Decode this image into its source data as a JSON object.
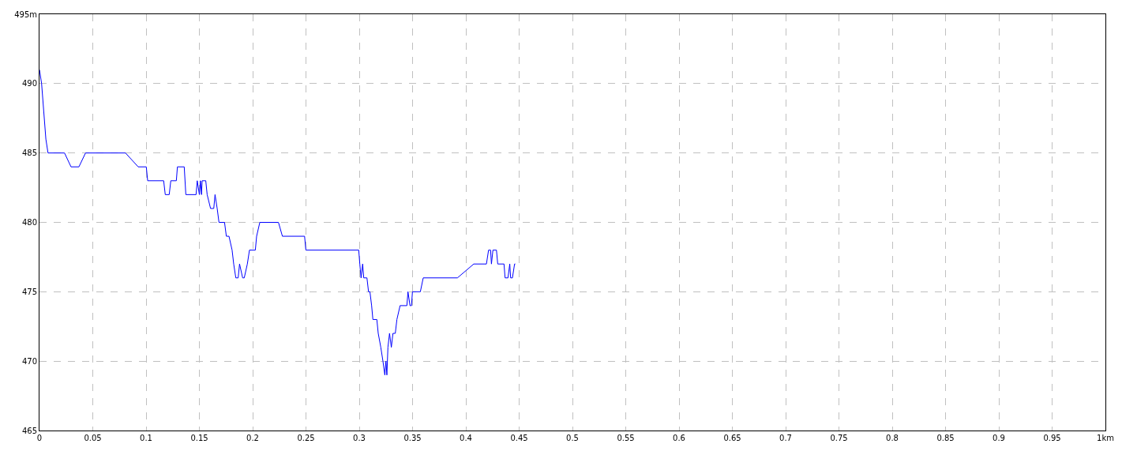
{
  "chart_data": {
    "type": "line",
    "color": "#0000ff",
    "x": [
      0,
      0.002,
      0.004,
      0.006,
      0.008,
      0.0235,
      0.0296,
      0.037,
      0.0432,
      0.0807,
      0.0926,
      0.1002,
      0.1015,
      0.1165,
      0.118,
      0.1217,
      0.1232,
      0.1284,
      0.1294,
      0.1358,
      0.1373,
      0.1469,
      0.148,
      0.15,
      0.151,
      0.152,
      0.1526,
      0.156,
      0.1573,
      0.1605,
      0.1635,
      0.1647,
      0.1667,
      0.1684,
      0.1736,
      0.1753,
      0.1778,
      0.1807,
      0.1822,
      0.1842,
      0.1864,
      0.1877,
      0.1906,
      0.1921,
      0.195,
      0.197,
      0.2025,
      0.2037,
      0.2067,
      0.2242,
      0.2279,
      0.2487,
      0.2499,
      0.2995,
      0.3005,
      0.3017,
      0.3032,
      0.3042,
      0.3072,
      0.3087,
      0.31,
      0.3116,
      0.3128,
      0.3165,
      0.3178,
      0.3202,
      0.3222,
      0.324,
      0.325,
      0.3259,
      0.3269,
      0.3284,
      0.3301,
      0.3316,
      0.3338,
      0.3353,
      0.3383,
      0.3447,
      0.3457,
      0.3476,
      0.349,
      0.3499,
      0.3573,
      0.36,
      0.3921,
      0.4074,
      0.4193,
      0.4213,
      0.4232,
      0.424,
      0.4254,
      0.4287,
      0.4299,
      0.4358,
      0.4368,
      0.4395,
      0.4412,
      0.442,
      0.4437,
      0.4457,
      0.4464
    ],
    "values": [
      491,
      490,
      488,
      486,
      485,
      485,
      484,
      484,
      485,
      485,
      484,
      484,
      483,
      483,
      482,
      482,
      483,
      483,
      484,
      484,
      482,
      482,
      483,
      482,
      483,
      482,
      483,
      483,
      482,
      481,
      481,
      482,
      481,
      480,
      480,
      479,
      479,
      478,
      477,
      476,
      476,
      477,
      476,
      476,
      477,
      478,
      478,
      479,
      480,
      480,
      479,
      479,
      478,
      478,
      477,
      476,
      477,
      476,
      476,
      475,
      475,
      474,
      473,
      473,
      472,
      471,
      470,
      469,
      470,
      469,
      471,
      472,
      471,
      472,
      472,
      473,
      474,
      474,
      475,
      474,
      474,
      475,
      475,
      476,
      476,
      477,
      477,
      478,
      478,
      477,
      478,
      478,
      477,
      477,
      476,
      476,
      477,
      476,
      476,
      477,
      477
    ],
    "xlim": [
      0,
      1
    ],
    "xticks": [
      0,
      0.05,
      0.1,
      0.15,
      0.2,
      0.25,
      0.3,
      0.35,
      0.4,
      0.45,
      0.5,
      0.55,
      0.6,
      0.65,
      0.7,
      0.75,
      0.8,
      0.85,
      0.9,
      0.95,
      {
        "value": 1,
        "label": "1km"
      }
    ],
    "ylim": [
      465,
      495
    ],
    "yticks": [
      465,
      470,
      475,
      480,
      485,
      490,
      {
        "value": 495,
        "label": "495m"
      }
    ],
    "grid": true,
    "marker": "none",
    "line_style": "solid",
    "legend": false
  }
}
